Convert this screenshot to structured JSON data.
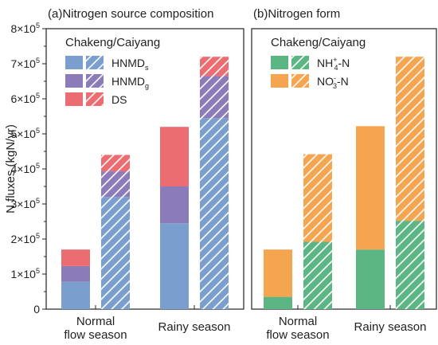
{
  "chart_data": {
    "type": "bar",
    "stacked": true,
    "ylabel": "N fluxes (kgN/yr)",
    "ylim": [
      0,
      800000
    ],
    "y_ticks": [
      {
        "value": 0,
        "mantissa": "0",
        "exp": ""
      },
      {
        "value": 100000,
        "mantissa": "1×10",
        "exp": "5"
      },
      {
        "value": 200000,
        "mantissa": "2×10",
        "exp": "5"
      },
      {
        "value": 300000,
        "mantissa": "3×10",
        "exp": "5"
      },
      {
        "value": 400000,
        "mantissa": "4×10",
        "exp": "5"
      },
      {
        "value": 500000,
        "mantissa": "5×10",
        "exp": "5"
      },
      {
        "value": 600000,
        "mantissa": "6×10",
        "exp": "5"
      },
      {
        "value": 700000,
        "mantissa": "7×10",
        "exp": "5"
      },
      {
        "value": 800000,
        "mantissa": "8×10",
        "exp": "5"
      }
    ],
    "grid": false,
    "legend_position": "top-left",
    "panels": [
      {
        "title": "(a)Nitrogen source composition",
        "legend_title": "Chakeng/Caiyang",
        "categories": [
          {
            "lines": [
              "Normal",
              "flow season"
            ]
          },
          {
            "lines": [
              "Rainy season"
            ]
          }
        ],
        "bars_per_category": [
          {
            "style": "solid"
          },
          {
            "style": "hatched"
          }
        ],
        "series": [
          {
            "base": "HNMD",
            "sub": "s",
            "sup": "",
            "suffix": "",
            "color": "#7a9fcf",
            "values": [
              [
                78000,
                320000
              ],
              [
                245000,
                545000
              ]
            ]
          },
          {
            "base": "HNMD",
            "sub": "g",
            "sup": "",
            "suffix": "",
            "color": "#8b7bb8",
            "values": [
              [
                45000,
                73000
              ],
              [
                105000,
                120000
              ]
            ]
          },
          {
            "base": "DS",
            "sub": "",
            "sup": "",
            "suffix": "",
            "color": "#ec6d71",
            "values": [
              [
                47000,
                47000
              ],
              [
                170000,
                55000
              ]
            ]
          }
        ]
      },
      {
        "title": "(b)Nitrogen form",
        "legend_title": "Chakeng/Caiyang",
        "categories": [
          {
            "lines": [
              "Normal",
              "flow season"
            ]
          },
          {
            "lines": [
              "Rainy season"
            ]
          }
        ],
        "bars_per_category": [
          {
            "style": "solid"
          },
          {
            "style": "hatched"
          }
        ],
        "series": [
          {
            "base": "NH",
            "sub": "4",
            "sup": "+",
            "suffix": "-N",
            "color": "#5cb684",
            "values": [
              [
                35000,
                192000
              ],
              [
                170000,
                252000
              ]
            ]
          },
          {
            "base": "NO",
            "sub": "3",
            "sup": "-",
            "suffix": "-N",
            "color": "#f5a550",
            "values": [
              [
                135000,
                250000
              ],
              [
                352000,
                468000
              ]
            ]
          }
        ]
      }
    ]
  }
}
